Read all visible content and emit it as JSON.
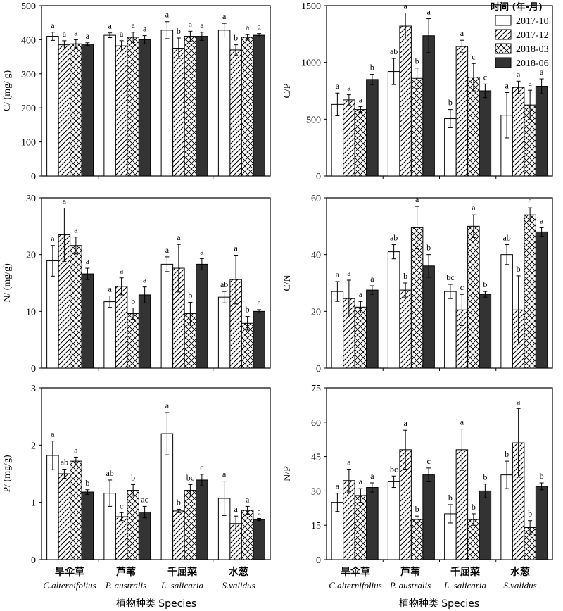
{
  "legend": {
    "title": "时间 (年-月)",
    "entries": [
      "2017-10",
      "2017-12",
      "2018-03",
      "2018-06"
    ]
  },
  "x_axis": {
    "categories_cn": [
      "旱伞草",
      "芦苇",
      "千屈菜",
      "水葱"
    ],
    "categories_en": [
      "C.alternifolius",
      "P. australis",
      "L. salicaria",
      "S.validus"
    ],
    "title_left": "植物种类 Species",
    "title_right": "植物种类 Species"
  },
  "chart_data": [
    {
      "id": "C",
      "type": "bar",
      "ylabel": "C/ (mg/ g)",
      "ylim": [
        0,
        500
      ],
      "yticks": [
        0,
        100,
        200,
        300,
        400,
        500
      ],
      "categories": [
        "旱伞草",
        "芦苇",
        "千屈菜",
        "水葱"
      ],
      "series": [
        {
          "name": "2017-10",
          "values": [
            410,
            413,
            428,
            428
          ],
          "errors": [
            12,
            7,
            25,
            20
          ],
          "labels": [
            "a",
            "a",
            "a",
            "a"
          ]
        },
        {
          "name": "2017-12",
          "values": [
            385,
            382,
            375,
            370
          ],
          "errors": [
            12,
            15,
            30,
            15
          ],
          "labels": [
            "a",
            "a",
            "b",
            "b"
          ]
        },
        {
          "name": "2018-03",
          "values": [
            388,
            407,
            410,
            407
          ],
          "errors": [
            12,
            15,
            15,
            8
          ],
          "labels": [
            "a",
            "a",
            "a",
            "a"
          ]
        },
        {
          "name": "2018-06",
          "values": [
            387,
            400,
            410,
            413
          ],
          "errors": [
            4,
            12,
            12,
            5
          ],
          "labels": [
            "a",
            "a",
            "a",
            "a"
          ]
        }
      ]
    },
    {
      "id": "CP",
      "type": "bar",
      "ylabel": "C/P",
      "ylim": [
        0,
        1500
      ],
      "yticks": [
        0,
        500,
        1000,
        1500
      ],
      "categories": [
        "旱伞草",
        "芦苇",
        "千屈菜",
        "水葱"
      ],
      "series": [
        {
          "name": "2017-10",
          "values": [
            630,
            920,
            505,
            535
          ],
          "errors": [
            100,
            115,
            80,
            200
          ],
          "labels": [
            "a",
            "ab",
            "b",
            "a"
          ]
        },
        {
          "name": "2017-12",
          "values": [
            670,
            1320,
            1140,
            780
          ],
          "errors": [
            45,
            115,
            55,
            55
          ],
          "labels": [
            "a",
            "a",
            "a",
            "a"
          ]
        },
        {
          "name": "2018-03",
          "values": [
            585,
            860,
            870,
            625
          ],
          "errors": [
            25,
            90,
            120,
            130
          ],
          "labels": [
            "a",
            "b",
            "c",
            "a"
          ]
        },
        {
          "name": "2018-06",
          "values": [
            850,
            1235,
            750,
            790
          ],
          "errors": [
            45,
            150,
            60,
            65
          ],
          "labels": [
            "b",
            "a",
            "c",
            "a"
          ]
        }
      ]
    },
    {
      "id": "N",
      "type": "bar",
      "ylabel": "N/ (mg/g)",
      "ylim": [
        0,
        30
      ],
      "yticks": [
        0,
        10,
        20,
        30
      ],
      "categories": [
        "旱伞草",
        "芦苇",
        "千屈菜",
        "水葱"
      ],
      "series": [
        {
          "name": "2017-10",
          "values": [
            18.9,
            11.7,
            18.3,
            12.5
          ],
          "errors": [
            2.7,
            1.0,
            1.3,
            1.0
          ],
          "labels": [
            "a",
            "a",
            "a",
            "ab"
          ]
        },
        {
          "name": "2017-12",
          "values": [
            23.5,
            14.4,
            17.6,
            15.6
          ],
          "errors": [
            4.7,
            1.5,
            4.2,
            4.3
          ],
          "labels": [
            "a",
            "a",
            "a",
            "a"
          ]
        },
        {
          "name": "2018-03",
          "values": [
            21.6,
            9.6,
            9.6,
            7.9
          ],
          "errors": [
            1.5,
            1.0,
            2.0,
            1.2
          ],
          "labels": [
            "a",
            "b",
            "b",
            "b"
          ]
        },
        {
          "name": "2018-06",
          "values": [
            16.6,
            12.9,
            18.3,
            10.0
          ],
          "errors": [
            1.0,
            1.4,
            1.0,
            0.3
          ],
          "labels": [
            "a",
            "a",
            "a",
            "a"
          ]
        }
      ]
    },
    {
      "id": "CN",
      "type": "bar",
      "ylabel": "C/N",
      "ylim": [
        0,
        60
      ],
      "yticks": [
        0,
        20,
        40,
        60
      ],
      "categories": [
        "旱伞草",
        "芦苇",
        "千屈菜",
        "水葱"
      ],
      "series": [
        {
          "name": "2017-10",
          "values": [
            27,
            41,
            27,
            40
          ],
          "errors": [
            3.5,
            2.5,
            2.5,
            3.5
          ],
          "labels": [
            "a",
            "ab",
            "bc",
            "ab"
          ]
        },
        {
          "name": "2017-12",
          "values": [
            24.5,
            27.5,
            20.5,
            20.5
          ],
          "errors": [
            6.5,
            2.5,
            5.5,
            12
          ],
          "labels": [
            "a",
            "b",
            "c",
            "b"
          ]
        },
        {
          "name": "2018-03",
          "values": [
            21.5,
            49.5,
            50,
            54
          ],
          "errors": [
            2,
            7.5,
            4,
            2.5
          ],
          "labels": [
            "a",
            "a",
            "a",
            "a"
          ]
        },
        {
          "name": "2018-06",
          "values": [
            27.5,
            36,
            26,
            48
          ],
          "errors": [
            1.5,
            4,
            1,
            1.5
          ],
          "labels": [
            "a",
            "b",
            "b",
            "a"
          ]
        }
      ]
    },
    {
      "id": "P",
      "type": "bar",
      "ylabel": "P/ (mg/g)",
      "ylim": [
        0,
        3
      ],
      "yticks": [
        0,
        1,
        2,
        3
      ],
      "categories": [
        "旱伞草",
        "芦苇",
        "千屈菜",
        "水葱"
      ],
      "series": [
        {
          "name": "2017-10",
          "values": [
            1.82,
            1.16,
            2.2,
            1.07
          ],
          "errors": [
            0.25,
            0.23,
            0.37,
            0.3
          ],
          "labels": [
            "a",
            "ab",
            "a",
            "a"
          ]
        },
        {
          "name": "2017-12",
          "values": [
            1.5,
            0.75,
            0.85,
            0.63
          ],
          "errors": [
            0.08,
            0.07,
            0.03,
            0.13
          ],
          "labels": [
            "ab",
            "c",
            "b",
            "a"
          ]
        },
        {
          "name": "2018-03",
          "values": [
            1.72,
            1.21,
            1.21,
            0.86
          ],
          "errors": [
            0.07,
            0.1,
            0.1,
            0.07
          ],
          "labels": [
            "a",
            "b",
            "bc",
            "a"
          ]
        },
        {
          "name": "2018-06",
          "values": [
            1.18,
            0.83,
            1.39,
            0.7
          ],
          "errors": [
            0.04,
            0.1,
            0.1,
            0.02
          ],
          "labels": [
            "b",
            "ac",
            "c",
            "a"
          ]
        }
      ]
    },
    {
      "id": "NP",
      "type": "bar",
      "ylabel": "N/P",
      "ylim": [
        0,
        75
      ],
      "yticks": [
        0,
        15,
        30,
        45,
        60,
        75
      ],
      "categories": [
        "旱伞草",
        "芦苇",
        "千屈菜",
        "水葱"
      ],
      "series": [
        {
          "name": "2017-10",
          "values": [
            25,
            34,
            20,
            37
          ],
          "errors": [
            4,
            2.5,
            4,
            6
          ],
          "labels": [
            "a",
            "bc",
            "b",
            "b"
          ]
        },
        {
          "name": "2017-12",
          "values": [
            34.5,
            48,
            48,
            51
          ],
          "errors": [
            5,
            8.5,
            9,
            15
          ],
          "labels": [
            "a",
            "a",
            "a",
            "a"
          ]
        },
        {
          "name": "2018-03",
          "values": [
            28,
            17.5,
            17.5,
            14
          ],
          "errors": [
            3,
            1.5,
            2.5,
            3
          ],
          "labels": [
            "a",
            "b",
            "b",
            "b"
          ]
        },
        {
          "name": "2018-06",
          "values": [
            31.5,
            37,
            30,
            32
          ],
          "errors": [
            2,
            3,
            3,
            1.5
          ],
          "labels": [
            "a",
            "c",
            "b",
            "b"
          ]
        }
      ]
    }
  ]
}
